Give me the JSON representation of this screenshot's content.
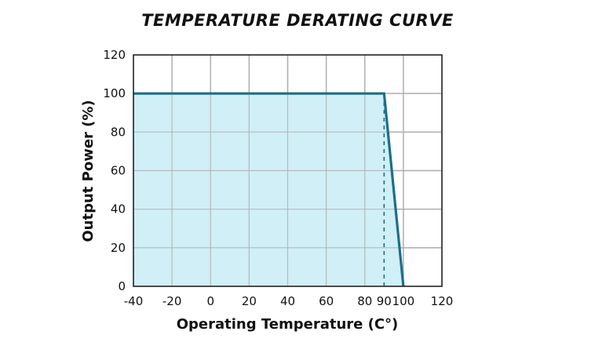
{
  "title": "TEMPERATURE DERATING CURVE",
  "chart_data": {
    "type": "area",
    "title": "TEMPERATURE DERATING CURVE",
    "xlabel": "Operating Temperature (C°)",
    "ylabel": "Output Power (%)",
    "xlim": [
      -40,
      120
    ],
    "ylim": [
      0,
      120
    ],
    "xticks": [
      -40,
      -20,
      0,
      20,
      40,
      60,
      80,
      90,
      100,
      120
    ],
    "yticks": [
      0,
      20,
      40,
      60,
      80,
      100,
      120
    ],
    "grid": true,
    "series": [
      {
        "x": [
          -40,
          90,
          100
        ],
        "y": [
          100,
          100,
          0
        ]
      }
    ],
    "reference_lines": [
      {
        "x": 90,
        "style": "dashed",
        "from_y": 0,
        "to_y": 100
      }
    ],
    "colors": {
      "line": "#1b6f8a",
      "fill": "#cdeef5",
      "grid": "#b0b0b0",
      "frame": "#222222"
    }
  }
}
